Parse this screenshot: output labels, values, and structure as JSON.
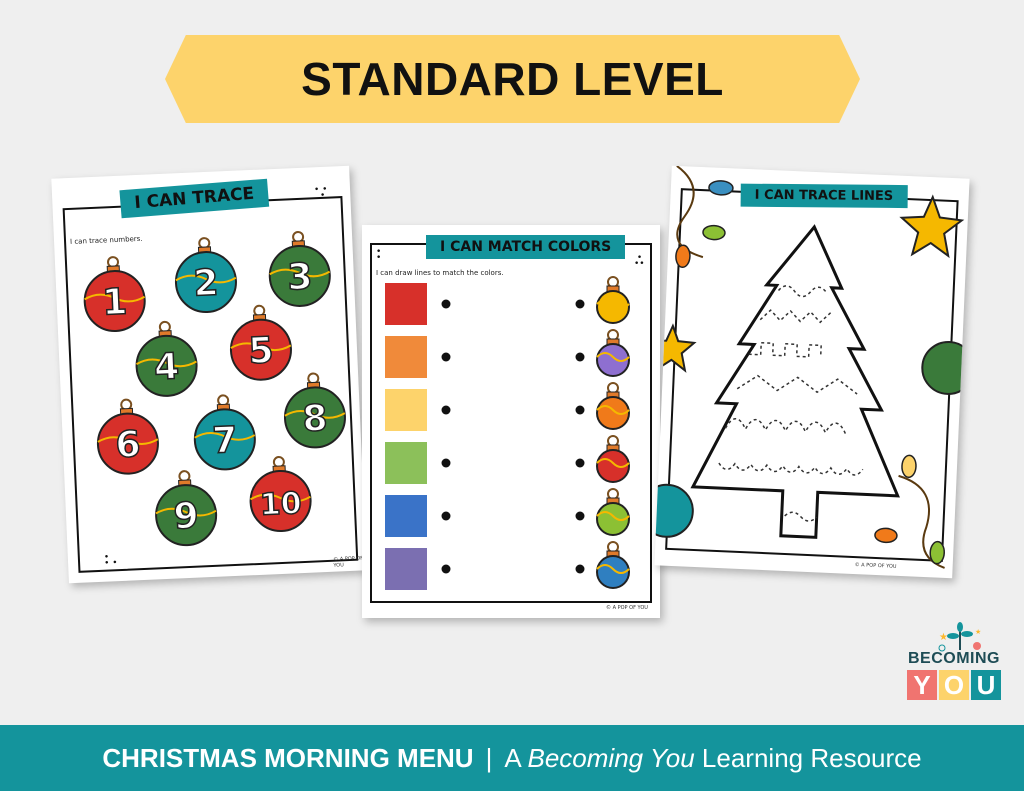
{
  "banner": {
    "title": "STANDARD LEVEL"
  },
  "sheets": [
    {
      "title": "I CAN TRACE",
      "instruction": "I can trace numbers.",
      "numbers": [
        "1",
        "2",
        "3",
        "4",
        "5",
        "6",
        "7",
        "8",
        "9",
        "10"
      ],
      "copyright": "© A POP OF YOU"
    },
    {
      "title": "I CAN MATCH COLORS",
      "instruction": "I can draw lines to match the colors.",
      "swatches": [
        "#d7302a",
        "#f08a3a",
        "#fdd36b",
        "#8cc05a",
        "#3a73c8",
        "#7b6fb1"
      ],
      "ornaments": [
        "#f5b800",
        "#8e6fd0",
        "#f07a1a",
        "#d7302a",
        "#8cc034",
        "#2f7fc0"
      ],
      "copyright": "© A POP OF YOU"
    },
    {
      "title": "I CAN TRACE LINES",
      "copyright": "© A POP OF YOU"
    }
  ],
  "logo": {
    "word": "BECOMING",
    "letters": [
      "Y",
      "O",
      "U"
    ],
    "colors": [
      "#f07470",
      "#fdd36b",
      "#14949c"
    ]
  },
  "footer": {
    "bold": "CHRISTMAS MORNING MENU",
    "separator": "|",
    "prefix": "A ",
    "italic": "Becoming You",
    "suffix": " Learning Resource"
  },
  "colors": {
    "background": "#efefef",
    "banner": "#fdd36b",
    "teal": "#14949c"
  }
}
